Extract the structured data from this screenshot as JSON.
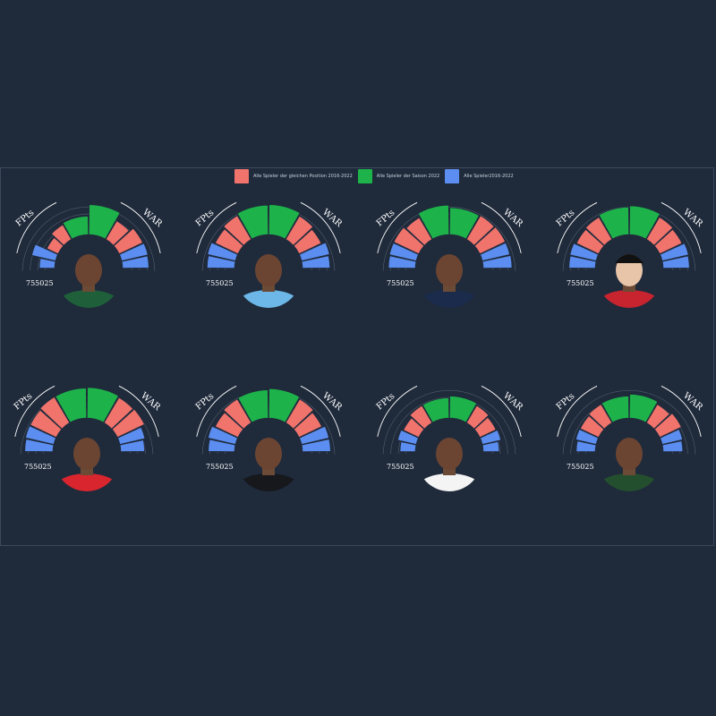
{
  "colors": {
    "background": "#1f2a3b",
    "position": "#f0736c",
    "season": "#1db34a",
    "all": "#5b8ef0",
    "ring": "#ffffff",
    "text": "#ffffff"
  },
  "legend": [
    {
      "label": "Alle Spieler der gleichen Position 2016-2022",
      "color": "#f0736c"
    },
    {
      "label": "Alle Spieler der Saison 2022",
      "color": "#1db34a"
    },
    {
      "label": "Alle Spieler2016-2022",
      "color": "#5b8ef0"
    }
  ],
  "chart_data": [
    {
      "type": "bar",
      "subtitle": "",
      "left_label": "FPts",
      "right_label": "WAR",
      "tick_labels": [
        "75",
        "50",
        "25"
      ],
      "player_image": "player-portrait-green-bay-jersey",
      "series": [
        {
          "name": "Alle Spieler der gleichen Position 2016-2022",
          "values": [
            40,
            55,
            70,
            85
          ]
        },
        {
          "name": "Alle Spieler der Saison 2022",
          "values": [
            60,
            98,
            98,
            75
          ]
        },
        {
          "name": "Alle Spieler2016-2022",
          "values": [
            50,
            80,
            88,
            86
          ]
        }
      ]
    },
    {
      "type": "bar",
      "subtitle": "",
      "left_label": "FPts",
      "right_label": "WAR",
      "tick_labels": [
        "75",
        "50",
        "25"
      ],
      "player_image": "player-portrait-light-blue-jersey",
      "series": [
        {
          "name": "Alle Spieler der gleichen Position 2016-2022",
          "values": [
            82,
            90,
            88,
            80
          ]
        },
        {
          "name": "Alle Spieler der Saison 2022",
          "values": [
            96,
            98,
            98,
            96
          ]
        },
        {
          "name": "Alle Spieler2016-2022",
          "values": [
            90,
            94,
            94,
            90
          ]
        }
      ]
    },
    {
      "type": "bar",
      "subtitle": "",
      "left_label": "FPts",
      "right_label": "WAR",
      "tick_labels": [
        "75",
        "50",
        "25"
      ],
      "player_image": "player-portrait-navy-jersey",
      "series": [
        {
          "name": "Alle Spieler der gleichen Position 2016-2022",
          "values": [
            90,
            82,
            90,
            92
          ]
        },
        {
          "name": "Alle Spieler der Saison 2022",
          "values": [
            96,
            88,
            100,
            96
          ]
        },
        {
          "name": "Alle Spieler2016-2022",
          "values": [
            88,
            90,
            92,
            94
          ]
        }
      ]
    },
    {
      "type": "bar",
      "subtitle": "",
      "left_label": "FPts",
      "right_label": "WAR",
      "tick_labels": [
        "75",
        "50",
        "25"
      ],
      "player_image": "player-portrait-red-jersey",
      "series": [
        {
          "name": "Alle Spieler der gleichen Position 2016-2022",
          "values": [
            80,
            84,
            84,
            80
          ]
        },
        {
          "name": "Alle Spieler der Saison 2022",
          "values": [
            90,
            94,
            94,
            90
          ]
        },
        {
          "name": "Alle Spieler2016-2022",
          "values": [
            86,
            88,
            88,
            86
          ]
        }
      ]
    },
    {
      "type": "bar",
      "subtitle": "",
      "left_label": "FPts",
      "right_label": "WAR",
      "tick_labels": [
        "75",
        "50",
        "25"
      ],
      "player_image": "player-portrait-kansas-city-jersey",
      "series": [
        {
          "name": "Alle Spieler der gleichen Position 2016-2022",
          "values": [
            94,
            98,
            96,
            98
          ]
        },
        {
          "name": "Alle Spieler der Saison 2022",
          "values": [
            98,
            100,
            86,
            98
          ]
        },
        {
          "name": "Alle Spieler2016-2022",
          "values": [
            92,
            95,
            84,
            78
          ]
        }
      ]
    },
    {
      "type": "bar",
      "subtitle": "",
      "left_label": "FPts",
      "right_label": "WAR",
      "tick_labels": [
        "75",
        "50",
        "25"
      ],
      "player_image": "player-portrait-black-jersey",
      "series": [
        {
          "name": "Alle Spieler der gleichen Position 2016-2022",
          "values": [
            82,
            90,
            90,
            82
          ]
        },
        {
          "name": "Alle Spieler der Saison 2022",
          "values": [
            92,
            96,
            96,
            92
          ]
        },
        {
          "name": "Alle Spieler2016-2022",
          "values": [
            86,
            92,
            92,
            92
          ]
        }
      ]
    },
    {
      "type": "bar",
      "subtitle": "",
      "left_label": "FPts",
      "right_label": "WAR",
      "tick_labels": [
        "75",
        "50",
        "25"
      ],
      "player_image": "player-portrait-white-jersey",
      "series": [
        {
          "name": "Alle Spieler der gleichen Position 2016-2022",
          "values": [
            55,
            65,
            65,
            58
          ]
        },
        {
          "name": "Alle Spieler der Saison 2022",
          "values": [
            66,
            72,
            72,
            66
          ]
        },
        {
          "name": "Alle Spieler2016-2022",
          "values": [
            50,
            62,
            62,
            52
          ]
        }
      ]
    },
    {
      "type": "bar",
      "subtitle": "",
      "left_label": "FPts",
      "right_label": "WAR",
      "tick_labels": [
        "75",
        "50",
        "25"
      ],
      "player_image": "player-portrait-green-jersey",
      "series": [
        {
          "name": "Alle Spieler der gleichen Position 2016-2022",
          "values": [
            66,
            70,
            70,
            78
          ]
        },
        {
          "name": "Alle Spieler der Saison 2022",
          "values": [
            72,
            78,
            78,
            72
          ]
        },
        {
          "name": "Alle Spieler2016-2022",
          "values": [
            62,
            68,
            68,
            64
          ]
        }
      ]
    }
  ]
}
